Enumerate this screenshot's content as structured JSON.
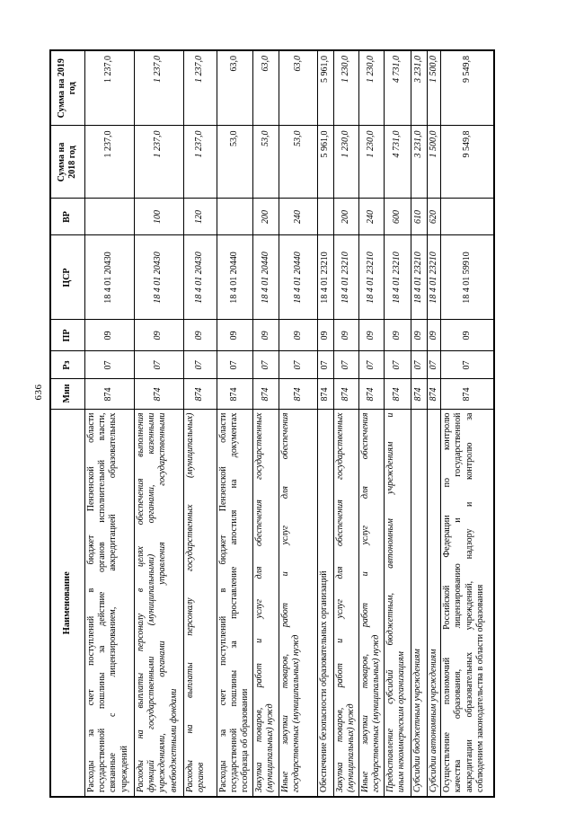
{
  "page_number": "636",
  "colors": {
    "ink": "#000000",
    "paper": "#ffffff"
  },
  "table": {
    "headers": {
      "name": "Наименование",
      "min": "Мин",
      "rz": "Рз",
      "pr": "ПР",
      "csr": "ЦСР",
      "vr": "ВР",
      "sum2018": "Сумма на 2018 год",
      "sum2019": "Сумма на 2019 год"
    },
    "rows": [
      {
        "name": "Расходы за счет поступлений в бюджет Пензенской области\nгосударственной пошлины за действие органов исполнительной власти,\nсвязанные с лицензированием, аккредитацией образовательных\nучреждений",
        "min": "874",
        "rz": "07",
        "pr": "09",
        "csr": "18 4 01 20430",
        "vr": "",
        "sum2018": "1 237,0",
        "sum2019": "1 237,0",
        "italic": false
      },
      {
        "name": "Расходы на выплаты персоналу в целях обеспечения выполнения\nфункций государственными (муниципальными) органами, казенными\nучреждениями, органами управления государственными\nвнебюджетными фондами",
        "min": "874",
        "rz": "07",
        "pr": "09",
        "csr": "18 4 01 20430",
        "vr": "100",
        "sum2018": "1 237,0",
        "sum2019": "1 237,0",
        "italic": true
      },
      {
        "name": "Расходы на выплаты персоналу государственных (муниципальных)\nорганов",
        "min": "874",
        "rz": "07",
        "pr": "09",
        "csr": "18 4 01 20430",
        "vr": "120",
        "sum2018": "1 237,0",
        "sum2019": "1 237,0",
        "italic": true
      },
      {
        "name": "Расходы за счет поступлений в бюджет Пензенской области\nгосударственной пошлины за проставление апостиля на документах\nгособразца об образовании",
        "min": "874",
        "rz": "07",
        "pr": "09",
        "csr": "18 4 01 20440",
        "vr": "",
        "sum2018": "53,0",
        "sum2019": "63,0",
        "italic": false
      },
      {
        "name": "Закупка товаров, работ и услуг для обеспечения государственных\n(муниципальных) нужд",
        "min": "874",
        "rz": "07",
        "pr": "09",
        "csr": "18 4 01 20440",
        "vr": "200",
        "sum2018": "53,0",
        "sum2019": "63,0",
        "italic": true
      },
      {
        "name": "Иные закупки товаров, работ и услуг для обеспечения\nгосударственных (муниципальных) нужд",
        "min": "874",
        "rz": "07",
        "pr": "09",
        "csr": "18 4 01 20440",
        "vr": "240",
        "sum2018": "53,0",
        "sum2019": "63,0",
        "italic": true
      },
      {
        "name": "Обеспечение безопасности образовательных организаций",
        "min": "874",
        "rz": "07",
        "pr": "09",
        "csr": "18 4 01 23210",
        "vr": "",
        "sum2018": "5 961,0",
        "sum2019": "5 961,0",
        "italic": false
      },
      {
        "name": "Закупка товаров, работ и услуг для обеспечения государственных\n(муниципальных) нужд",
        "min": "874",
        "rz": "07",
        "pr": "09",
        "csr": "18 4 01 23210",
        "vr": "200",
        "sum2018": "1 230,0",
        "sum2019": "1 230,0",
        "italic": true
      },
      {
        "name": "Иные закупки товаров, работ и услуг для обеспечения\nгосударственных (муниципальных) нужд",
        "min": "874",
        "rz": "07",
        "pr": "09",
        "csr": "18 4 01 23210",
        "vr": "240",
        "sum2018": "1 230,0",
        "sum2019": "1 230,0",
        "italic": true
      },
      {
        "name": "Предоставление субсидий бюджетным, автономным учреждениям и\nиным некоммерческим организациям",
        "min": "874",
        "rz": "07",
        "pr": "09",
        "csr": "18 4 01 23210",
        "vr": "600",
        "sum2018": "4 731,0",
        "sum2019": "4 731,0",
        "italic": true
      },
      {
        "name": "Субсидии бюджетным учреждениям",
        "min": "874",
        "rz": "07",
        "pr": "09",
        "csr": "18 4 01 23210",
        "vr": "610",
        "sum2018": "3 231,0",
        "sum2019": "3 231,0",
        "italic": true
      },
      {
        "name": "Субсидии автономным учреждениям",
        "min": "874",
        "rz": "07",
        "pr": "09",
        "csr": "18 4 01 23210",
        "vr": "620",
        "sum2018": "1 500,0",
        "sum2019": "1 500,0",
        "italic": true
      },
      {
        "name": "Осуществление полномочий Российской Федерации по контролю\nкачества образования, лицензированию и государственной\nаккредитации образовательных учреждений, надзору и контролю за\nсоблюдением законодательства в области образования",
        "min": "874",
        "rz": "07",
        "pr": "09",
        "csr": "18 4 01 59910",
        "vr": "",
        "sum2018": "9 549,8",
        "sum2019": "9 549,8",
        "italic": false
      }
    ]
  }
}
